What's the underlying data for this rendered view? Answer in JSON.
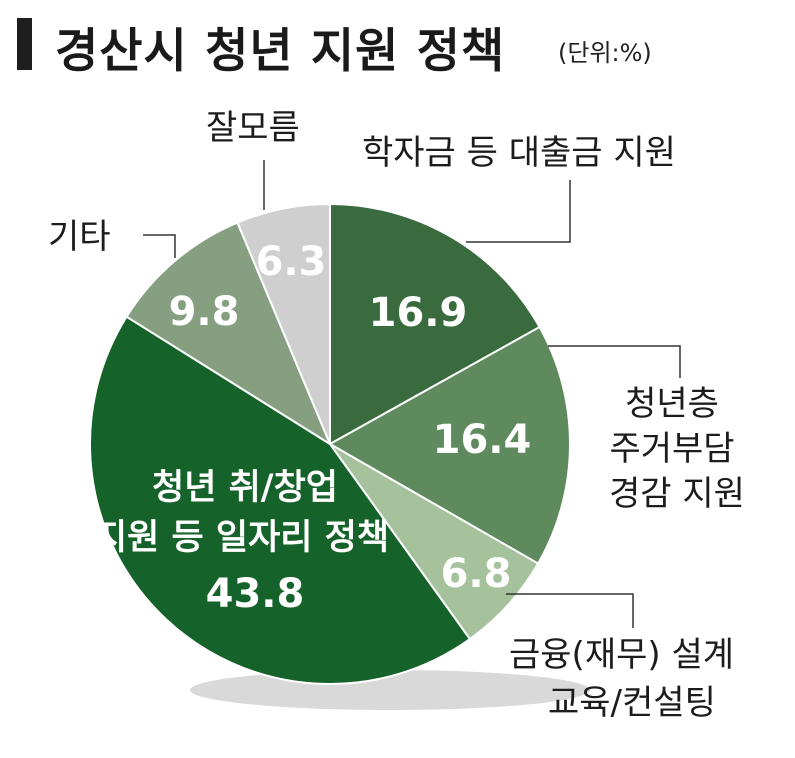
{
  "header": {
    "title": "경산시 청년 지원 정책",
    "unit": "(단위:%)"
  },
  "chart_data": {
    "type": "pie",
    "title": "경산시 청년 지원 정책",
    "unit": "%",
    "slices": [
      {
        "label": "학자금 등 대출금 지원",
        "value": 16.9,
        "color": "#3a6b3e"
      },
      {
        "label": "청년층 주거부담 경감 지원",
        "value": 16.4,
        "color": "#5e8a5e"
      },
      {
        "label": "금융(재무) 설계 교육/컨설팅",
        "value": 6.8,
        "color": "#a6c29d"
      },
      {
        "label": "청년 취/창업 지원 등 일자리 정책",
        "value": 43.8,
        "color": "#16622b"
      },
      {
        "label": "기타",
        "value": 9.8,
        "color": "#859f80"
      },
      {
        "label": "잘모름",
        "value": 6.3,
        "color": "#cfcfcf"
      }
    ]
  },
  "labels": {
    "loan": "학자금 등 대출금 지원",
    "housing_1": "청년층",
    "housing_2": "주거부담",
    "housing_3": "경감 지원",
    "finance_1": "금융(재무) 설계",
    "finance_2": "교육/컨설팅",
    "jobs_1": "청년 취/창업",
    "jobs_2": "지원 등 일자리 정책",
    "other": "기타",
    "unknown": "잘모름"
  },
  "values_text": {
    "loan": "16.9",
    "housing": "16.4",
    "finance": "6.8",
    "jobs": "43.8",
    "other": "9.8",
    "unknown": "6.3"
  }
}
